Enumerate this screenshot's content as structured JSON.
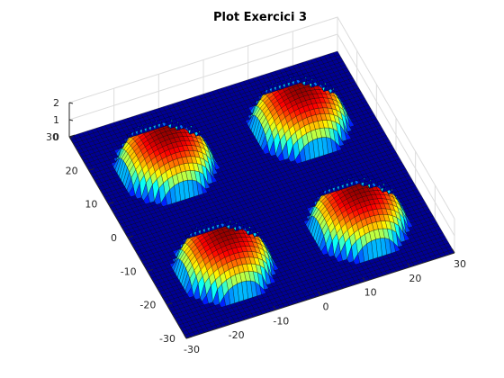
{
  "chart_data": {
    "type": "surface3d",
    "title": "Plot Exercici 3",
    "xlabel": "",
    "ylabel": "",
    "zlabel": "",
    "xlim": [
      -30,
      30
    ],
    "ylim": [
      -30,
      30
    ],
    "zlim": [
      0,
      2
    ],
    "x_ticks": [
      "-30",
      "-20",
      "-10",
      "0",
      "10",
      "20",
      "30"
    ],
    "y_ticks": [
      "-30",
      "-20",
      "-10",
      "0",
      "10",
      "20",
      "30"
    ],
    "z_ticks": [
      "0",
      "1",
      "2"
    ],
    "grid": true,
    "colormap": "jet",
    "mesh_step": 1,
    "domes": [
      {
        "center": [
          -15,
          15
        ],
        "radius": 10,
        "peak": 2
      },
      {
        "center": [
          15,
          15
        ],
        "radius": 10,
        "peak": 2
      },
      {
        "center": [
          -15,
          -15
        ],
        "radius": 10,
        "peak": 2
      },
      {
        "center": [
          15,
          -15
        ],
        "radius": 10,
        "peak": 2
      }
    ]
  }
}
